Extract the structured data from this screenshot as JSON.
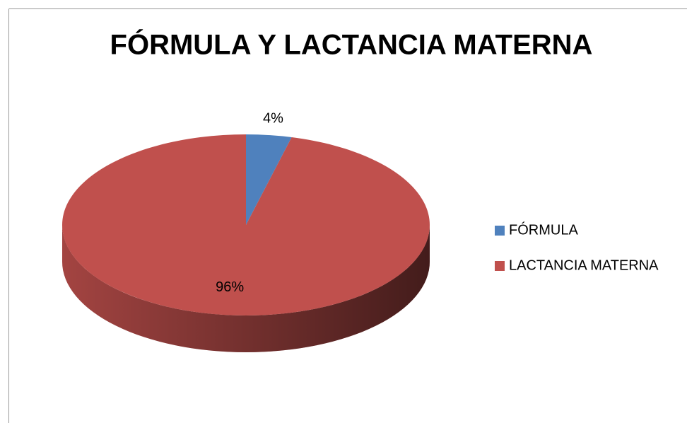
{
  "chart_data": {
    "type": "pie",
    "title": "FÓRMULA Y LACTANCIA MATERNA",
    "categories": [
      "FÓRMULA",
      "LACTANCIA MATERNA"
    ],
    "values": [
      4,
      96
    ],
    "value_labels": [
      "4%",
      "96%"
    ],
    "colors": [
      "#4f81bd",
      "#c0504d"
    ],
    "legend": "right"
  }
}
